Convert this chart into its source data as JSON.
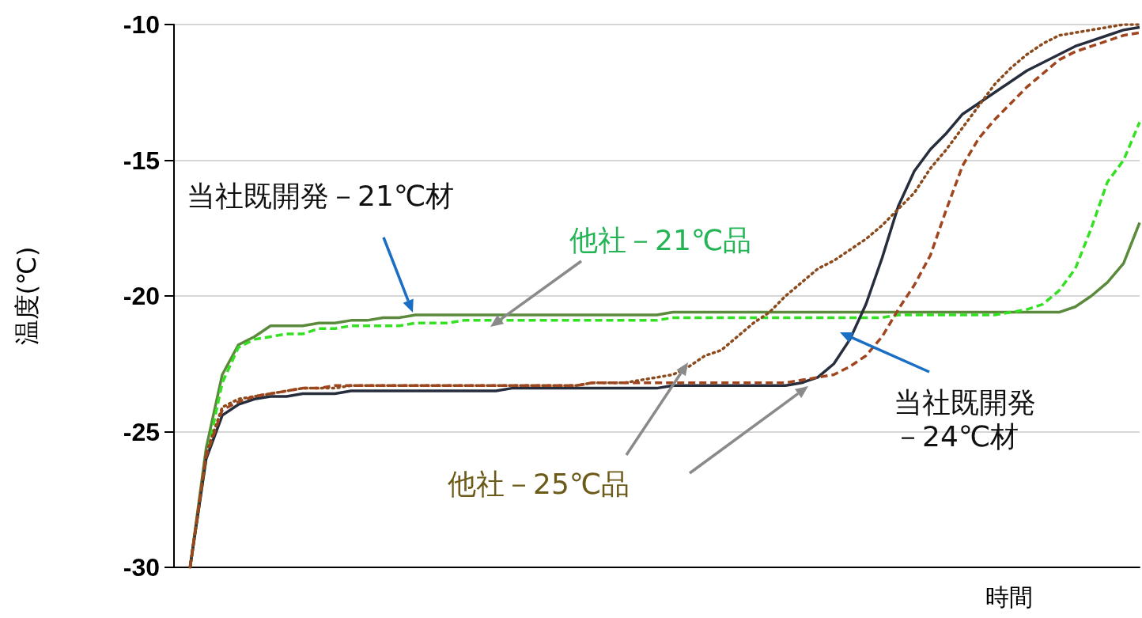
{
  "chart_data": {
    "type": "line",
    "ylabel": "温度(℃)",
    "xlabel": "時間",
    "categories": [
      null,
      null,
      null,
      null,
      null,
      null,
      null,
      null,
      null,
      null,
      null,
      null,
      null,
      null,
      null,
      null,
      null,
      null,
      null,
      null,
      null,
      null,
      null,
      null,
      null,
      null,
      null,
      null,
      null,
      null,
      null,
      null,
      null,
      null,
      null,
      null,
      null,
      null,
      null,
      null,
      null,
      null,
      null,
      null,
      null,
      null,
      null,
      null,
      null,
      null,
      null,
      null,
      null,
      null,
      null,
      null,
      null,
      null,
      null,
      null,
      null
    ],
    "ylim": [
      -30,
      -10
    ],
    "yticks": [
      -30,
      -25,
      -20,
      -15,
      -10
    ],
    "grid": "y",
    "marker": "none",
    "series": [
      {
        "color": "#5b8a3c",
        "line_style": "solid",
        "values": [
          null,
          -30,
          -25.6,
          -22.9,
          -21.8,
          -21.5,
          -21.1,
          -21.1,
          -21.1,
          -21.0,
          -21.0,
          -20.9,
          -20.9,
          -20.8,
          -20.8,
          -20.7,
          -20.7,
          -20.7,
          -20.7,
          -20.7,
          -20.7,
          -20.7,
          -20.7,
          -20.7,
          -20.7,
          -20.7,
          -20.7,
          -20.7,
          -20.7,
          -20.7,
          -20.7,
          -20.6,
          -20.6,
          -20.6,
          -20.6,
          -20.6,
          -20.6,
          -20.6,
          -20.6,
          -20.6,
          -20.6,
          -20.6,
          -20.6,
          -20.6,
          -20.6,
          -20.6,
          -20.6,
          -20.6,
          -20.6,
          -20.6,
          -20.6,
          -20.6,
          -20.6,
          -20.6,
          -20.6,
          -20.6,
          -20.4,
          -20.0,
          -19.5,
          -18.8,
          -17.3
        ]
      },
      {
        "color": "#33e022",
        "line_style": "dashed",
        "values": [
          null,
          -30,
          -26.0,
          -23.2,
          -21.9,
          -21.6,
          -21.5,
          -21.4,
          -21.4,
          -21.2,
          -21.2,
          -21.1,
          -21.1,
          -21.1,
          -21.1,
          -21.0,
          -21.0,
          -21.0,
          -20.9,
          -20.9,
          -20.9,
          -20.9,
          -20.9,
          -20.9,
          -20.9,
          -20.9,
          -20.9,
          -20.9,
          -20.9,
          -20.9,
          -20.9,
          -20.8,
          -20.8,
          -20.8,
          -20.8,
          -20.8,
          -20.8,
          -20.8,
          -20.8,
          -20.8,
          -20.8,
          -20.8,
          -20.8,
          -20.8,
          -20.8,
          -20.7,
          -20.7,
          -20.7,
          -20.7,
          -20.7,
          -20.7,
          -20.7,
          -20.6,
          -20.5,
          -20.3,
          -19.8,
          -19.0,
          -17.5,
          -15.8,
          -15.0,
          -13.6
        ]
      },
      {
        "color": "#262d3d",
        "line_style": "solid",
        "values": [
          null,
          -30,
          -26.0,
          -24.4,
          -24.0,
          -23.8,
          -23.7,
          -23.7,
          -23.6,
          -23.6,
          -23.6,
          -23.5,
          -23.5,
          -23.5,
          -23.5,
          -23.5,
          -23.5,
          -23.5,
          -23.5,
          -23.5,
          -23.5,
          -23.4,
          -23.4,
          -23.4,
          -23.4,
          -23.4,
          -23.4,
          -23.4,
          -23.4,
          -23.4,
          -23.4,
          -23.3,
          -23.3,
          -23.3,
          -23.3,
          -23.3,
          -23.3,
          -23.3,
          -23.3,
          -23.2,
          -23.0,
          -22.5,
          -21.6,
          -20.3,
          -18.6,
          -16.7,
          -15.4,
          -14.6,
          -14.0,
          -13.3,
          -12.9,
          -12.5,
          -12.1,
          -11.7,
          -11.4,
          -11.1,
          -10.8,
          -10.6,
          -10.4,
          -10.2,
          -10.1
        ]
      },
      {
        "color": "#8b4a1c",
        "line_style": "dotted",
        "values": [
          null,
          -30,
          -25.8,
          -24.1,
          -23.8,
          -23.7,
          -23.6,
          -23.5,
          -23.4,
          -23.4,
          -23.4,
          -23.3,
          -23.3,
          -23.3,
          -23.3,
          -23.3,
          -23.3,
          -23.3,
          -23.3,
          -23.3,
          -23.3,
          -23.3,
          -23.3,
          -23.3,
          -23.3,
          -23.3,
          -23.2,
          -23.2,
          -23.2,
          -23.1,
          -23.0,
          -22.9,
          -22.6,
          -22.2,
          -22.0,
          -21.5,
          -21.0,
          -20.6,
          -20.0,
          -19.5,
          -19.0,
          -18.7,
          -18.3,
          -17.9,
          -17.4,
          -16.8,
          -16.2,
          -15.3,
          -14.6,
          -13.8,
          -13.0,
          -12.2,
          -11.6,
          -11.1,
          -10.7,
          -10.4,
          -10.3,
          -10.2,
          -10.1,
          -10.0,
          -10.0
        ]
      },
      {
        "color": "#a0461e",
        "line_style": "dashed",
        "values": [
          null,
          -30,
          -25.9,
          -24.2,
          -23.9,
          -23.7,
          -23.6,
          -23.5,
          -23.4,
          -23.4,
          -23.3,
          -23.3,
          -23.3,
          -23.3,
          -23.3,
          -23.3,
          -23.3,
          -23.3,
          -23.3,
          -23.3,
          -23.3,
          -23.3,
          -23.3,
          -23.3,
          -23.3,
          -23.3,
          -23.2,
          -23.2,
          -23.2,
          -23.2,
          -23.2,
          -23.2,
          -23.2,
          -23.2,
          -23.2,
          -23.2,
          -23.2,
          -23.2,
          -23.2,
          -23.1,
          -23.0,
          -22.9,
          -22.6,
          -22.2,
          -21.5,
          -20.5,
          -19.6,
          -18.5,
          -16.8,
          -15.2,
          -14.2,
          -13.5,
          -12.9,
          -12.3,
          -11.8,
          -11.3,
          -11.0,
          -10.8,
          -10.6,
          -10.4,
          -10.3
        ]
      }
    ],
    "annotations": [
      "当社既開発－21℃材",
      "他社－21℃品",
      "他社－25℃品",
      "当社既開発－24℃材"
    ]
  }
}
